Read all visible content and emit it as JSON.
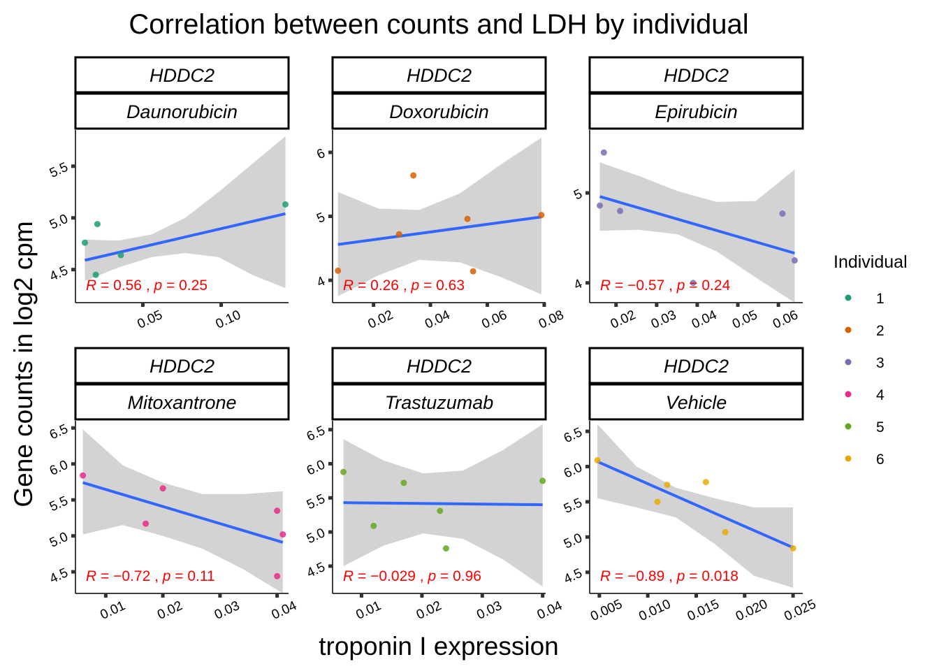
{
  "title": "Correlation between counts and LDH by individual",
  "xlabel": "troponin I expression",
  "ylabel": "Gene counts in log2 cpm",
  "legend": {
    "title": "Individual",
    "position": "right",
    "items": [
      {
        "label": "1",
        "color": "#1B9E77"
      },
      {
        "label": "2",
        "color": "#D95F02"
      },
      {
        "label": "3",
        "color": "#7570B3"
      },
      {
        "label": "4",
        "color": "#E7298A"
      },
      {
        "label": "5",
        "color": "#66A61E"
      },
      {
        "label": "6",
        "color": "#E6AB02"
      }
    ]
  },
  "colors": {
    "fit_line": "#3366FF",
    "ci_band": "#D3D3D3",
    "annotation": "#FF0000"
  },
  "chart_data": [
    {
      "type": "scatter",
      "gene": "HDDC2",
      "drug": "Daunorubicin",
      "xlim": [
        0.007,
        0.143
      ],
      "ylim": [
        4.18,
        5.85
      ],
      "xticks": [
        0.05,
        0.1
      ],
      "xtick_labels": [
        "0.05",
        "0.10"
      ],
      "yticks": [
        4.5,
        5.0,
        5.5
      ],
      "ytick_labels": [
        "4.5",
        "5.0",
        "5.5"
      ],
      "points": [
        {
          "x": 0.013,
          "y": 4.76,
          "ind": "1"
        },
        {
          "x": 0.02,
          "y": 4.45,
          "ind": "1"
        },
        {
          "x": 0.021,
          "y": 4.94,
          "ind": "1"
        },
        {
          "x": 0.036,
          "y": 4.64,
          "ind": "1"
        },
        {
          "x": 0.141,
          "y": 5.13,
          "ind": "1"
        }
      ],
      "fit": {
        "x": [
          0.013,
          0.141
        ],
        "y": [
          4.59,
          5.04
        ]
      },
      "ci_lower": [
        4.39,
        4.52,
        4.62,
        4.66,
        4.62,
        4.45,
        4.32
      ],
      "ci_upper": [
        4.79,
        4.78,
        4.84,
        5.0,
        5.25,
        5.52,
        5.79
      ],
      "annotation": {
        "r": "0.56",
        "p": "0.25"
      }
    },
    {
      "type": "scatter",
      "gene": "HDDC2",
      "drug": "Doxorubicin",
      "xlim": [
        0.0056,
        0.0805
      ],
      "ylim": [
        3.65,
        6.35
      ],
      "xticks": [
        0.02,
        0.04,
        0.06,
        0.08
      ],
      "xtick_labels": [
        "0.02",
        "0.04",
        "0.06",
        "0.08"
      ],
      "yticks": [
        4,
        5,
        6
      ],
      "ytick_labels": [
        "4",
        "5",
        "6"
      ],
      "points": [
        {
          "x": 0.0075,
          "y": 4.15,
          "ind": "2"
        },
        {
          "x": 0.029,
          "y": 4.72,
          "ind": "2"
        },
        {
          "x": 0.034,
          "y": 5.64,
          "ind": "2"
        },
        {
          "x": 0.053,
          "y": 4.96,
          "ind": "2"
        },
        {
          "x": 0.055,
          "y": 4.14,
          "ind": "2"
        },
        {
          "x": 0.079,
          "y": 5.02,
          "ind": "2"
        }
      ],
      "fit": {
        "x": [
          0.0075,
          0.079
        ],
        "y": [
          4.56,
          4.99
        ]
      },
      "ci_lower": [
        3.75,
        4.08,
        4.32,
        4.28,
        4.05,
        3.78
      ],
      "ci_upper": [
        5.38,
        5.12,
        5.1,
        5.36,
        5.81,
        6.23
      ],
      "annotation": {
        "r": "0.26",
        "p": "0.63"
      }
    },
    {
      "type": "scatter",
      "gene": "HDDC2",
      "drug": "Epirubicin",
      "xlim": [
        0.0135,
        0.066
      ],
      "ylim": [
        3.78,
        5.7
      ],
      "xticks": [
        0.02,
        0.03,
        0.04,
        0.05,
        0.06
      ],
      "xtick_labels": [
        "0.02",
        "0.03",
        "0.04",
        "0.05",
        "0.06"
      ],
      "yticks": [
        4,
        5
      ],
      "ytick_labels": [
        "4",
        "5"
      ],
      "points": [
        {
          "x": 0.016,
          "y": 4.86,
          "ind": "3"
        },
        {
          "x": 0.017,
          "y": 5.45,
          "ind": "3"
        },
        {
          "x": 0.021,
          "y": 4.8,
          "ind": "3"
        },
        {
          "x": 0.039,
          "y": 4.0,
          "ind": "3"
        },
        {
          "x": 0.061,
          "y": 4.77,
          "ind": "3"
        },
        {
          "x": 0.064,
          "y": 4.25,
          "ind": "3"
        }
      ],
      "fit": {
        "x": [
          0.016,
          0.064
        ],
        "y": [
          4.96,
          4.33
        ]
      },
      "ci_lower": [
        4.58,
        4.59,
        4.54,
        4.35,
        4.06,
        3.78
      ],
      "ci_upper": [
        5.34,
        5.19,
        5.02,
        4.9,
        4.91,
        5.26
      ],
      "annotation": {
        "r": "−0.57",
        "p": "0.24"
      }
    },
    {
      "type": "scatter",
      "gene": "HDDC2",
      "drug": "Mitoxantrone",
      "xlim": [
        0.0047,
        0.042
      ],
      "ylim": [
        4.2,
        6.6
      ],
      "xticks": [
        0.01,
        0.02,
        0.03,
        0.04
      ],
      "xtick_labels": [
        "0.01",
        "0.02",
        "0.03",
        "0.04"
      ],
      "yticks": [
        4.5,
        5.0,
        5.5,
        6.0,
        6.5
      ],
      "ytick_labels": [
        "4.5",
        "5.0",
        "5.5",
        "6.0",
        "6.5"
      ],
      "points": [
        {
          "x": 0.006,
          "y": 5.84,
          "ind": "4"
        },
        {
          "x": 0.017,
          "y": 5.17,
          "ind": "4"
        },
        {
          "x": 0.02,
          "y": 5.66,
          "ind": "4"
        },
        {
          "x": 0.04,
          "y": 5.35,
          "ind": "4"
        },
        {
          "x": 0.04,
          "y": 4.44,
          "ind": "4"
        },
        {
          "x": 0.041,
          "y": 5.02,
          "ind": "4"
        }
      ],
      "fit": {
        "x": [
          0.006,
          0.041
        ],
        "y": [
          5.74,
          4.91
        ]
      },
      "ci_lower": [
        5.02,
        5.15,
        5.0,
        4.82,
        4.54,
        4.2
      ],
      "ci_upper": [
        6.48,
        5.98,
        5.74,
        5.58,
        5.58,
        5.62
      ],
      "annotation": {
        "r": "−0.72",
        "p": "0.11"
      }
    },
    {
      "type": "scatter",
      "gene": "HDDC2",
      "drug": "Trastuzumab",
      "xlim": [
        0.0052,
        0.0405
      ],
      "ylim": [
        4.1,
        6.63
      ],
      "xticks": [
        0.01,
        0.02,
        0.03,
        0.04
      ],
      "xtick_labels": [
        "0.01",
        "0.02",
        "0.03",
        "0.04"
      ],
      "yticks": [
        4.5,
        5.0,
        5.5,
        6.0,
        6.5
      ],
      "ytick_labels": [
        "4.5",
        "5.0",
        "5.5",
        "6.0",
        "6.5"
      ],
      "points": [
        {
          "x": 0.007,
          "y": 5.88,
          "ind": "5"
        },
        {
          "x": 0.012,
          "y": 5.09,
          "ind": "5"
        },
        {
          "x": 0.017,
          "y": 5.72,
          "ind": "5"
        },
        {
          "x": 0.023,
          "y": 5.31,
          "ind": "5"
        },
        {
          "x": 0.024,
          "y": 4.76,
          "ind": "5"
        },
        {
          "x": 0.04,
          "y": 5.75,
          "ind": "5"
        }
      ],
      "fit": {
        "x": [
          0.007,
          0.04
        ],
        "y": [
          5.43,
          5.4
        ]
      },
      "ci_lower": [
        4.5,
        4.8,
        4.98,
        4.9,
        4.6,
        4.2
      ],
      "ci_upper": [
        6.36,
        6.05,
        5.86,
        5.9,
        6.2,
        6.58
      ],
      "annotation": {
        "r": "−0.029",
        "p": "0.96"
      }
    },
    {
      "type": "scatter",
      "gene": "HDDC2",
      "drug": "Vehicle",
      "xlim": [
        0.004,
        0.026
      ],
      "ylim": [
        4.2,
        6.65
      ],
      "xticks": [
        0.005,
        0.01,
        0.015,
        0.02,
        0.025
      ],
      "xtick_labels": [
        "0.005",
        "0.010",
        "0.015",
        "0.020",
        "0.025"
      ],
      "yticks": [
        4.5,
        5.0,
        5.5,
        6.0,
        6.5
      ],
      "ytick_labels": [
        "4.5",
        "5.0",
        "5.5",
        "6.0",
        "6.5"
      ],
      "points": [
        {
          "x": 0.0048,
          "y": 6.09,
          "ind": "6"
        },
        {
          "x": 0.011,
          "y": 5.5,
          "ind": "6"
        },
        {
          "x": 0.012,
          "y": 5.74,
          "ind": "6"
        },
        {
          "x": 0.016,
          "y": 5.78,
          "ind": "6"
        },
        {
          "x": 0.018,
          "y": 5.07,
          "ind": "6"
        },
        {
          "x": 0.025,
          "y": 4.84,
          "ind": "6"
        }
      ],
      "fit": {
        "x": [
          0.0048,
          0.025
        ],
        "y": [
          6.07,
          4.85
        ]
      },
      "ci_lower": [
        5.55,
        5.42,
        5.28,
        4.9,
        4.45,
        4.28
      ],
      "ci_upper": [
        6.6,
        6.0,
        5.7,
        5.55,
        5.42,
        5.42
      ],
      "annotation": {
        "r": "−0.89",
        "p": "0.018"
      }
    }
  ]
}
